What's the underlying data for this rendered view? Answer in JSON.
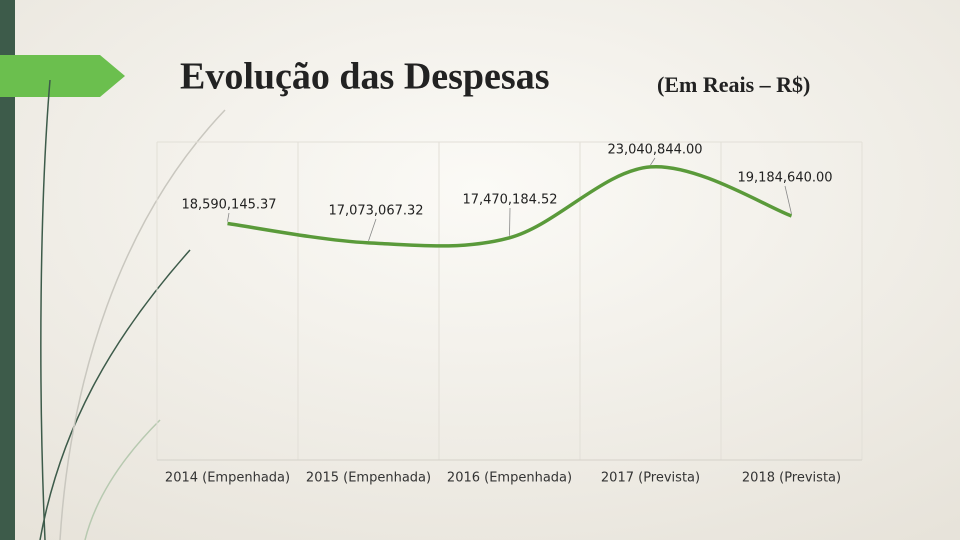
{
  "chart_data": {
    "type": "line",
    "title": "Evolução das Despesas",
    "subtitle": "(Em Reais – R$)",
    "categories": [
      "2014 (Empenhada)",
      "2015 (Empenhada)",
      "2016 (Empenhada)",
      "2017 (Prevista)",
      "2018 (Prevista)"
    ],
    "series": [
      {
        "name": "Despesas",
        "color": "#5a9a3a",
        "values": [
          18590145.37,
          17073067.32,
          17470184.52,
          23040844.0,
          19184640.0
        ],
        "value_labels": [
          "18,590,145.37",
          "17,073,067.32",
          "17,470,184.52",
          "23,040,844.00",
          "19,184,640.00"
        ]
      }
    ],
    "ylim": [
      0,
      25000000
    ]
  }
}
